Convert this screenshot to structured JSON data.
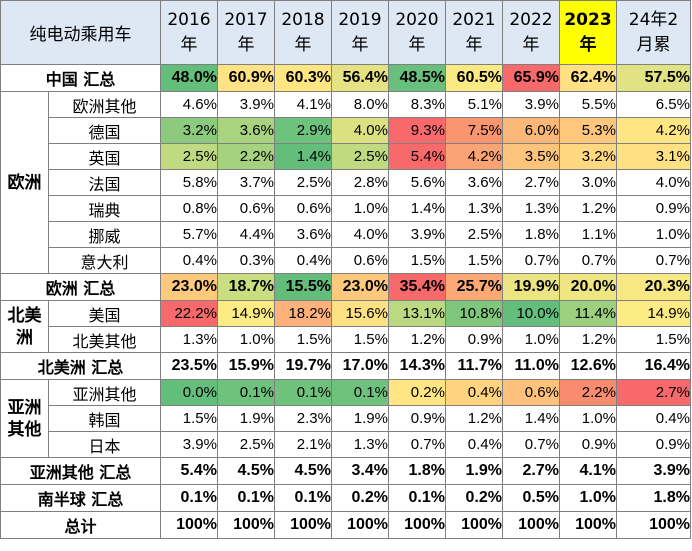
{
  "header": {
    "title": "纯电动乘用车",
    "years": [
      {
        "top": "2016",
        "bottom": "年",
        "highlight": false
      },
      {
        "top": "2017",
        "bottom": "年",
        "highlight": false
      },
      {
        "top": "2018",
        "bottom": "年",
        "highlight": false
      },
      {
        "top": "2019",
        "bottom": "年",
        "highlight": false
      },
      {
        "top": "2020",
        "bottom": "年",
        "highlight": false
      },
      {
        "top": "2021",
        "bottom": "年",
        "highlight": false
      },
      {
        "top": "2022",
        "bottom": "年",
        "highlight": false
      },
      {
        "top": "2023",
        "bottom": "年",
        "highlight": true
      },
      {
        "top": "24年2",
        "bottom": "月累",
        "highlight": false
      }
    ]
  },
  "rows": [
    {
      "type": "sum",
      "label": "中国 汇总",
      "values": [
        "48.0%",
        "60.9%",
        "60.3%",
        "56.4%",
        "48.5%",
        "60.5%",
        "65.9%",
        "62.4%",
        "57.5%"
      ],
      "colors": [
        "#63be7b",
        "#ffe283",
        "#fee783",
        "#e5e283",
        "#69c07c",
        "#fbea84",
        "#f8696b",
        "#ffe183",
        "#e1e283"
      ]
    },
    {
      "type": "item",
      "group": "欧洲",
      "group_span": 7,
      "label": "欧洲其他",
      "values": [
        "4.6%",
        "3.9%",
        "4.1%",
        "8.0%",
        "8.3%",
        "5.1%",
        "3.9%",
        "5.5%",
        "6.5%"
      ],
      "colors": [
        "#ffffff",
        "#ffffff",
        "#ffffff",
        "#ffffff",
        "#ffffff",
        "#ffffff",
        "#ffffff",
        "#ffffff",
        "#ffffff"
      ]
    },
    {
      "type": "item",
      "label": "德国",
      "values": [
        "3.2%",
        "3.6%",
        "2.9%",
        "4.0%",
        "9.3%",
        "7.5%",
        "6.0%",
        "5.3%",
        "4.2%"
      ],
      "colors": [
        "#8ccb7e",
        "#a8d37f",
        "#6dc27c",
        "#dbe081",
        "#f8696b",
        "#f9956f",
        "#fbb878",
        "#fec77c",
        "#ffe583"
      ]
    },
    {
      "type": "item",
      "label": "英国",
      "values": [
        "2.5%",
        "2.2%",
        "1.4%",
        "2.5%",
        "5.4%",
        "4.2%",
        "3.5%",
        "3.2%",
        "3.1%"
      ],
      "colors": [
        "#bfda80",
        "#a5d27f",
        "#63be7b",
        "#bfda80",
        "#f8696b",
        "#faa374",
        "#fdc47b",
        "#ffd880",
        "#ffe082"
      ]
    },
    {
      "type": "item",
      "label": "法国",
      "values": [
        "5.8%",
        "3.7%",
        "2.5%",
        "2.8%",
        "5.6%",
        "3.6%",
        "2.7%",
        "3.0%",
        "4.0%"
      ],
      "colors": [
        "#ffffff",
        "#ffffff",
        "#ffffff",
        "#ffffff",
        "#ffffff",
        "#ffffff",
        "#ffffff",
        "#ffffff",
        "#ffffff"
      ]
    },
    {
      "type": "item",
      "label": "瑞典",
      "values": [
        "0.8%",
        "0.6%",
        "0.6%",
        "1.0%",
        "1.4%",
        "1.3%",
        "1.3%",
        "1.2%",
        "0.9%"
      ],
      "colors": [
        "#ffffff",
        "#ffffff",
        "#ffffff",
        "#ffffff",
        "#ffffff",
        "#ffffff",
        "#ffffff",
        "#ffffff",
        "#ffffff"
      ]
    },
    {
      "type": "item",
      "label": "挪威",
      "values": [
        "5.7%",
        "4.4%",
        "3.6%",
        "4.0%",
        "3.9%",
        "2.5%",
        "1.8%",
        "1.1%",
        "1.0%"
      ],
      "colors": [
        "#ffffff",
        "#ffffff",
        "#ffffff",
        "#ffffff",
        "#ffffff",
        "#ffffff",
        "#ffffff",
        "#ffffff",
        "#ffffff"
      ]
    },
    {
      "type": "item",
      "label": "意大利",
      "values": [
        "0.4%",
        "0.3%",
        "0.4%",
        "0.6%",
        "1.5%",
        "1.5%",
        "0.7%",
        "0.7%",
        "0.7%"
      ],
      "colors": [
        "#ffffff",
        "#ffffff",
        "#ffffff",
        "#ffffff",
        "#ffffff",
        "#ffffff",
        "#ffffff",
        "#ffffff",
        "#ffffff"
      ]
    },
    {
      "type": "sum",
      "label": "欧洲 汇总",
      "values": [
        "23.0%",
        "18.7%",
        "15.5%",
        "23.0%",
        "35.4%",
        "25.7%",
        "19.9%",
        "20.0%",
        "20.3%"
      ],
      "colors": [
        "#fdca7d",
        "#c9dd81",
        "#63be7b",
        "#fdca7d",
        "#f8696b",
        "#fca976",
        "#ebe483",
        "#eee583",
        "#f8e884"
      ]
    },
    {
      "type": "item",
      "group": "北美洲",
      "group_span": 2,
      "label": "美国",
      "values": [
        "22.2%",
        "14.9%",
        "18.2%",
        "15.6%",
        "13.1%",
        "10.8%",
        "10.0%",
        "11.4%",
        "14.9%"
      ],
      "colors": [
        "#f8696b",
        "#fdeb84",
        "#fcb27a",
        "#fee182",
        "#bad980",
        "#7fc77d",
        "#63be7b",
        "#9ccf7e",
        "#fdeb84"
      ]
    },
    {
      "type": "item",
      "label": "北美其他",
      "values": [
        "1.3%",
        "1.0%",
        "1.5%",
        "1.5%",
        "1.2%",
        "0.9%",
        "1.0%",
        "1.2%",
        "1.5%"
      ],
      "colors": [
        "#ffffff",
        "#ffffff",
        "#ffffff",
        "#ffffff",
        "#ffffff",
        "#ffffff",
        "#ffffff",
        "#ffffff",
        "#ffffff"
      ]
    },
    {
      "type": "sum",
      "label": "北美洲 汇总",
      "values": [
        "23.5%",
        "15.9%",
        "19.7%",
        "17.0%",
        "14.3%",
        "11.7%",
        "11.0%",
        "12.6%",
        "16.4%"
      ],
      "colors": [
        "#ffffff",
        "#ffffff",
        "#ffffff",
        "#ffffff",
        "#ffffff",
        "#ffffff",
        "#ffffff",
        "#ffffff",
        "#ffffff"
      ]
    },
    {
      "type": "item",
      "group": "亚洲其他",
      "group_span": 3,
      "label": "亚洲其他",
      "values": [
        "0.0%",
        "0.1%",
        "0.1%",
        "0.1%",
        "0.2%",
        "0.4%",
        "0.6%",
        "2.2%",
        "2.7%"
      ],
      "colors": [
        "#63be7b",
        "#6fc27c",
        "#6fc27c",
        "#6fc27c",
        "#ffe583",
        "#ffd37f",
        "#fdc17b",
        "#f98b6f",
        "#f8696b"
      ]
    },
    {
      "type": "item",
      "label": "韩国",
      "values": [
        "1.5%",
        "1.9%",
        "2.3%",
        "1.9%",
        "0.9%",
        "1.2%",
        "1.4%",
        "1.0%",
        "0.4%"
      ],
      "colors": [
        "#ffffff",
        "#ffffff",
        "#ffffff",
        "#ffffff",
        "#ffffff",
        "#ffffff",
        "#ffffff",
        "#ffffff",
        "#ffffff"
      ]
    },
    {
      "type": "item",
      "label": "日本",
      "values": [
        "3.9%",
        "2.5%",
        "2.1%",
        "1.3%",
        "0.7%",
        "0.4%",
        "0.7%",
        "0.9%",
        "0.9%"
      ],
      "colors": [
        "#ffffff",
        "#ffffff",
        "#ffffff",
        "#ffffff",
        "#ffffff",
        "#ffffff",
        "#ffffff",
        "#ffffff",
        "#ffffff"
      ]
    },
    {
      "type": "sum",
      "label": "亚洲其他 汇总",
      "values": [
        "5.4%",
        "4.5%",
        "4.5%",
        "3.4%",
        "1.8%",
        "1.9%",
        "2.7%",
        "4.1%",
        "3.9%"
      ],
      "colors": [
        "#ffffff",
        "#ffffff",
        "#ffffff",
        "#ffffff",
        "#ffffff",
        "#ffffff",
        "#ffffff",
        "#ffffff",
        "#ffffff"
      ]
    },
    {
      "type": "sum",
      "label": "南半球 汇总",
      "values": [
        "0.1%",
        "0.1%",
        "0.1%",
        "0.2%",
        "0.1%",
        "0.2%",
        "0.5%",
        "1.0%",
        "1.8%"
      ],
      "colors": [
        "#ffffff",
        "#ffffff",
        "#ffffff",
        "#ffffff",
        "#ffffff",
        "#ffffff",
        "#ffffff",
        "#ffffff",
        "#ffffff"
      ]
    },
    {
      "type": "sum",
      "label": "总计",
      "values": [
        "100%",
        "100%",
        "100%",
        "100%",
        "100%",
        "100%",
        "100%",
        "100%",
        "100%"
      ],
      "colors": [
        "#ffffff",
        "#ffffff",
        "#ffffff",
        "#ffffff",
        "#ffffff",
        "#ffffff",
        "#ffffff",
        "#ffffff",
        "#ffffff"
      ]
    }
  ]
}
